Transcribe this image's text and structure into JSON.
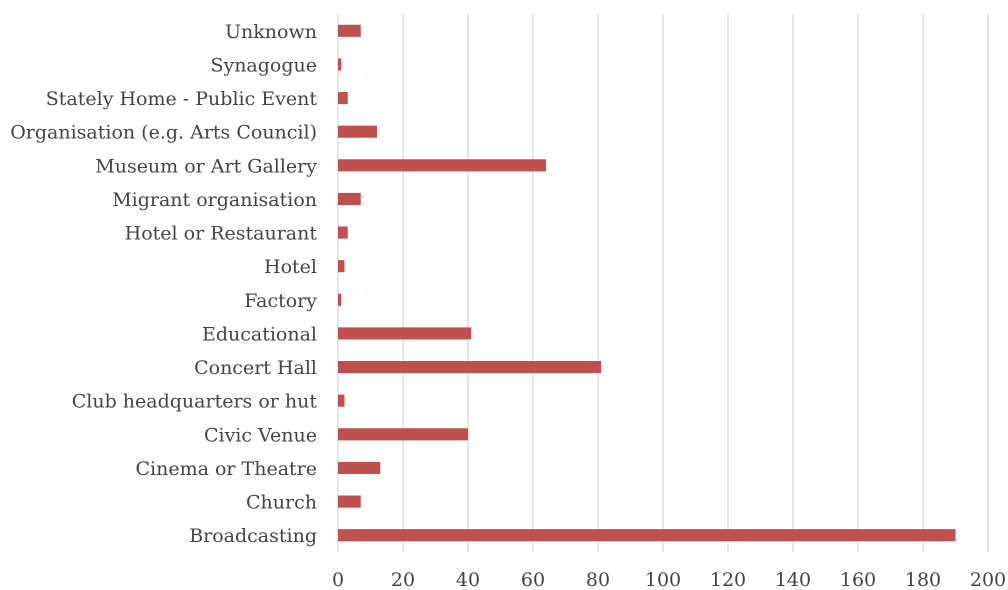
{
  "chart_data": {
    "type": "bar",
    "orientation": "horizontal",
    "categories": [
      "Broadcasting",
      "Church",
      "Cinema or Theatre",
      "Civic Venue",
      "Club headquarters or hut",
      "Concert Hall",
      "Educational",
      "Factory",
      "Hotel",
      "Hotel or Restaurant",
      "Migrant organisation",
      "Museum or Art Gallery",
      "Organisation (e.g. Arts Council)",
      "Stately Home - Public Event",
      "Synagogue",
      "Unknown"
    ],
    "values": [
      190,
      7,
      13,
      40,
      2,
      81,
      41,
      1,
      2,
      3,
      7,
      64,
      12,
      3,
      1,
      7
    ],
    "title": "",
    "xlabel": "",
    "ylabel": "",
    "xlim": [
      0,
      200
    ],
    "xticks": [
      0,
      20,
      40,
      60,
      80,
      100,
      120,
      140,
      160,
      180,
      200
    ],
    "grid": "vertical",
    "legend": "none",
    "bar_color": "#c0504d"
  }
}
